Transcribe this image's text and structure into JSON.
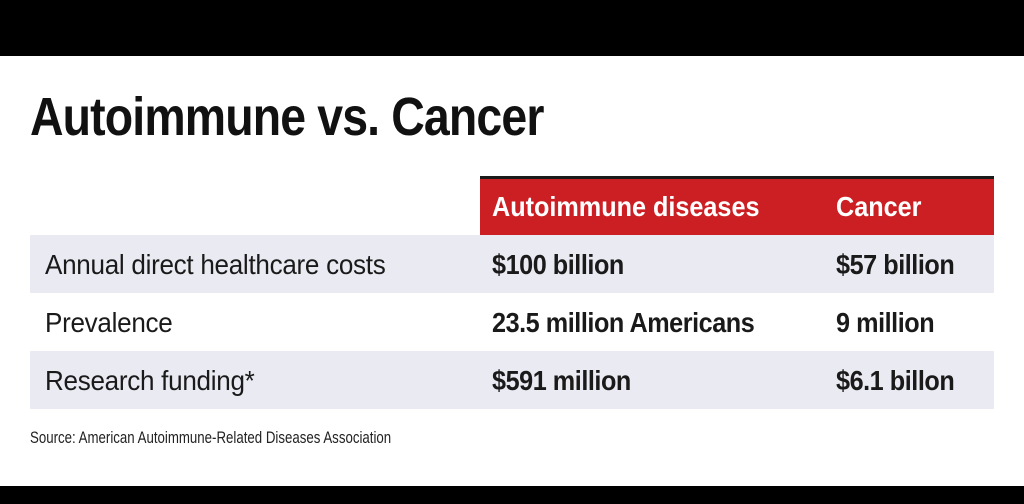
{
  "chart_data": {
    "type": "table",
    "title": "Autoimmune vs. Cancer",
    "columns": [
      "",
      "Autoimmune diseases",
      "Cancer"
    ],
    "rows": [
      {
        "label": "Annual direct healthcare costs",
        "autoimmune": "$100 billion",
        "cancer": "$57 billion"
      },
      {
        "label": "Prevalence",
        "autoimmune": "23.5 million Americans",
        "cancer": "9 million"
      },
      {
        "label": "Research funding*",
        "autoimmune": "$591 million",
        "cancer": "$6.1 billon"
      }
    ],
    "source": "Source: American Autoimmune-Related Diseases Association"
  },
  "colors": {
    "header_band": "#cc1f24",
    "shaded_row": "#e9eaf2",
    "frame": "#000000"
  }
}
